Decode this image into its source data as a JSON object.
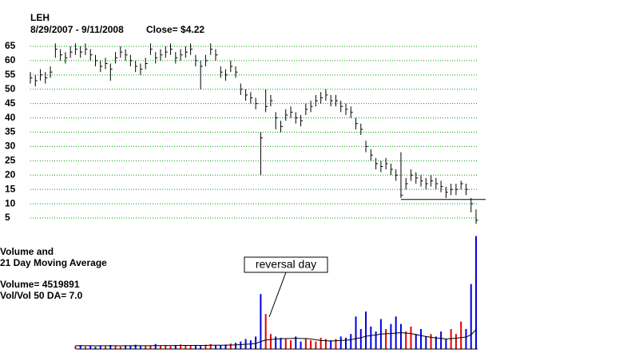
{
  "chart_data": {
    "type": "ohlc",
    "title": "LEH",
    "subtitle": "8/29/2007 - 9/11/2008",
    "close_label": "Close= $4.22",
    "ylim": [
      5,
      65
    ],
    "yticks": [
      5,
      10,
      15,
      20,
      25,
      30,
      35,
      40,
      45,
      50,
      55,
      60,
      65
    ],
    "grid": true,
    "grid_color": "#00a000",
    "bar_color": "#000000",
    "support_level": 11.5,
    "closes": [
      54,
      53,
      55,
      54,
      56,
      64,
      62,
      61,
      63,
      64,
      63,
      64,
      62,
      60,
      58,
      59,
      57,
      61,
      63,
      62,
      60,
      58,
      57,
      59,
      64,
      61,
      62,
      63,
      64,
      61,
      62,
      63,
      64,
      60,
      58,
      60,
      64,
      62,
      56,
      55,
      58,
      56,
      50,
      48,
      47,
      45,
      33,
      44,
      46,
      40,
      37,
      41,
      42,
      40,
      39,
      43,
      44,
      46,
      47,
      48,
      46,
      46,
      44,
      43,
      42,
      38,
      36,
      30,
      27,
      24,
      23,
      24,
      22,
      20,
      13,
      17,
      20,
      19,
      18,
      17,
      18,
      17,
      16,
      14,
      15,
      15,
      17,
      15,
      10,
      4.22
    ],
    "highs": [
      56,
      55,
      57,
      56,
      58,
      66,
      64,
      63,
      65,
      66,
      65,
      66,
      64,
      62,
      60,
      61,
      59,
      63,
      65,
      64,
      62,
      60,
      59,
      61,
      66,
      63,
      64,
      65,
      66,
      63,
      64,
      65,
      66,
      62,
      60,
      62,
      66,
      64,
      58,
      57,
      60,
      58,
      52,
      50,
      49,
      47,
      35,
      50,
      48,
      42,
      39,
      43,
      44,
      42,
      41,
      45,
      46,
      48,
      49,
      50,
      48,
      48,
      46,
      45,
      44,
      40,
      38,
      32,
      29,
      26,
      25,
      26,
      24,
      22,
      28,
      19,
      22,
      21,
      20,
      19,
      20,
      19,
      18,
      16,
      17,
      17,
      18,
      17,
      12,
      8
    ],
    "lows": [
      52,
      51,
      53,
      52,
      54,
      61,
      60,
      59,
      61,
      62,
      61,
      62,
      60,
      58,
      56,
      57,
      53,
      59,
      61,
      60,
      58,
      56,
      55,
      57,
      62,
      59,
      60,
      61,
      62,
      59,
      60,
      61,
      62,
      58,
      50,
      58,
      62,
      60,
      54,
      53,
      56,
      54,
      48,
      46,
      45,
      43,
      20,
      42,
      44,
      36,
      35,
      39,
      40,
      38,
      37,
      41,
      42,
      44,
      45,
      46,
      44,
      44,
      42,
      41,
      40,
      36,
      34,
      28,
      25,
      22,
      21,
      22,
      20,
      18,
      12,
      15,
      18,
      17,
      16,
      15,
      16,
      15,
      14,
      12,
      13,
      13,
      15,
      13,
      7,
      3
    ],
    "volume_title": "Volume and",
    "volume_subtitle": "21 Day Moving Average",
    "volume_label": "Volume= 4519891",
    "ratio_label": "Vol/Vol 50 DA= 7.0",
    "annotation": "reversal day",
    "vol_ylim": [
      0,
      4700000
    ],
    "up_color": "#e00000",
    "down_color": "#0000e0",
    "ma_color": "#000000",
    "volume": [
      null,
      null,
      null,
      null,
      null,
      null,
      null,
      null,
      null,
      120000,
      150000,
      100000,
      130000,
      90000,
      140000,
      110000,
      160000,
      120000,
      100000,
      150000,
      130000,
      170000,
      120000,
      110000,
      140000,
      200000,
      130000,
      150000,
      120000,
      160000,
      180000,
      140000,
      130000,
      150000,
      120000,
      170000,
      200000,
      160000,
      140000,
      180000,
      220000,
      250000,
      300000,
      400000,
      350000,
      500000,
      2200000,
      1400000,
      600000,
      500000,
      450000,
      400000,
      350000,
      500000,
      300000,
      400000,
      350000,
      300000,
      450000,
      400000,
      350000,
      400000,
      500000,
      450000,
      600000,
      1300000,
      800000,
      1500000,
      900000,
      700000,
      1200000,
      800000,
      1000000,
      1300000,
      1000000,
      700000,
      900000,
      600000,
      800000,
      500000,
      600000,
      500000,
      700000,
      400000,
      800000,
      600000,
      1100000,
      800000,
      2600000,
      4519891
    ],
    "ma21": [
      null,
      null,
      null,
      null,
      null,
      null,
      null,
      null,
      null,
      130000,
      135000,
      130000,
      130000,
      128000,
      130000,
      130000,
      132000,
      130000,
      128000,
      130000,
      132000,
      135000,
      133000,
      130000,
      132000,
      138000,
      137000,
      138000,
      136000,
      138000,
      142000,
      143000,
      143000,
      145000,
      143000,
      145000,
      150000,
      150000,
      150000,
      152000,
      158000,
      165000,
      175000,
      190000,
      200000,
      220000,
      300000,
      360000,
      380000,
      400000,
      410000,
      420000,
      420000,
      430000,
      420000,
      420000,
      400000,
      370000,
      340000,
      330000,
      320000,
      330000,
      340000,
      350000,
      370000,
      420000,
      450000,
      510000,
      540000,
      560000,
      600000,
      610000,
      620000,
      640000,
      650000,
      640000,
      620000,
      580000,
      540000,
      500000,
      470000,
      440000,
      430000,
      400000,
      420000,
      430000,
      460000,
      480000,
      570000,
      780000
    ]
  }
}
